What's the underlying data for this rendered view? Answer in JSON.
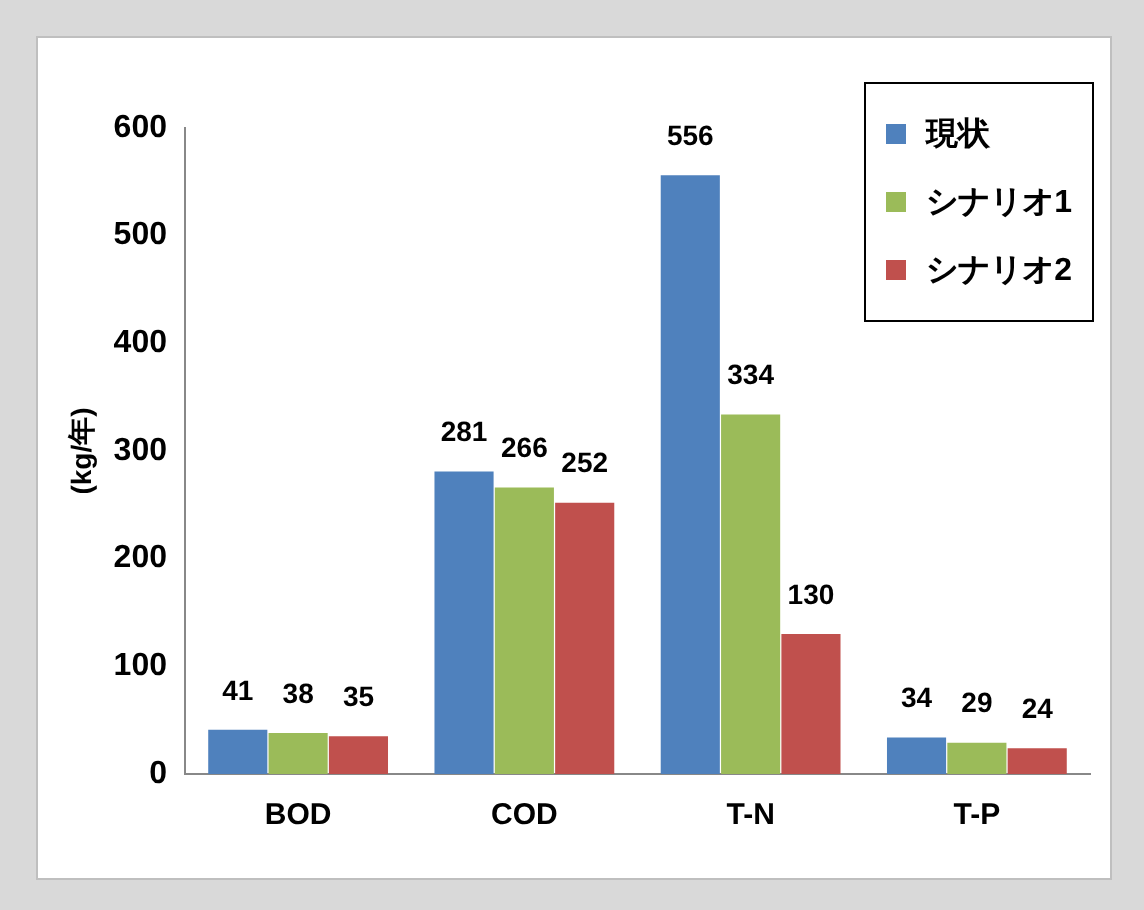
{
  "chart_data": {
    "type": "bar",
    "ylabel": "(kg/年)",
    "categories": [
      "BOD",
      "COD",
      "T-N",
      "T-P"
    ],
    "series": [
      {
        "name": "現状",
        "color": "#4f81bd",
        "values": [
          41,
          281,
          556,
          34
        ]
      },
      {
        "name": "シナリオ1",
        "color": "#9bbb59",
        "values": [
          38,
          266,
          334,
          29
        ]
      },
      {
        "name": "シナリオ2",
        "color": "#c0504d",
        "values": [
          35,
          252,
          130,
          24
        ]
      }
    ],
    "ylim": [
      0,
      600
    ],
    "yticks": [
      0,
      100,
      200,
      300,
      400,
      500,
      600
    ],
    "grid": false,
    "legend": "top right",
    "data_labels": true
  }
}
